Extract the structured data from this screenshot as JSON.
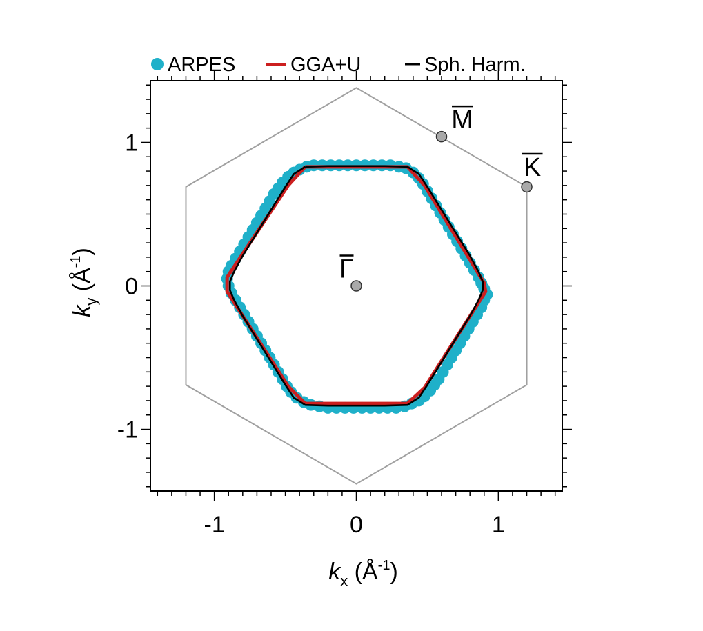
{
  "chart_data": {
    "type": "scatter",
    "xlabel": {
      "symbol": "k",
      "subscript": "x",
      "unit": "(Å",
      "unit_exp": "-1",
      "unit_close": ")"
    },
    "ylabel": {
      "symbol": "k",
      "subscript": "y",
      "unit": "(Å",
      "unit_exp": "-1",
      "unit_close": ")"
    },
    "xlim": [
      -1.45,
      1.45
    ],
    "ylim": [
      -1.43,
      1.43
    ],
    "x_ticks": [
      -1,
      0,
      1
    ],
    "y_ticks": [
      -1,
      0,
      1
    ],
    "x_tick_labels": [
      "-1",
      "0",
      "1"
    ],
    "y_tick_labels": [
      "-1",
      "0",
      "1"
    ],
    "minor_tick_step": 0.1,
    "grid": false,
    "legend": {
      "placement": "top",
      "entries": [
        {
          "label": "ARPES",
          "color": "#1fb0c9",
          "marker": "circle"
        },
        {
          "label": "GGA+U",
          "color": "#cc1f1f",
          "marker": "line"
        },
        {
          "label": "Sph. Harm.",
          "color": "#000000",
          "marker": "line"
        }
      ]
    },
    "brillouin_zone": {
      "color": "#a0a0a0",
      "vertices": [
        [
          0,
          1.38
        ],
        [
          1.2,
          0.69
        ],
        [
          1.2,
          -0.69
        ],
        [
          0,
          -1.38
        ],
        [
          -1.2,
          -0.69
        ],
        [
          -1.2,
          0.69
        ]
      ]
    },
    "high_symmetry_points": [
      {
        "label": "Γ",
        "x": 0.0,
        "y": 0.0
      },
      {
        "label": "M",
        "x": 0.6,
        "y": 1.04
      },
      {
        "label": "K",
        "x": 1.2,
        "y": 0.69
      }
    ],
    "series": [
      {
        "name": "ARPES",
        "color": "#1fb0c9",
        "kind": "points",
        "x": [
          0.0,
          0.06,
          0.12,
          0.18,
          0.24,
          0.3,
          0.35,
          0.4,
          0.44,
          0.47,
          0.5,
          0.53,
          0.56,
          0.59,
          0.62,
          0.65,
          0.68,
          0.71,
          0.74,
          0.77,
          0.8,
          0.83,
          0.86,
          0.88,
          0.9,
          0.92,
          0.9,
          0.88,
          0.85,
          0.82,
          0.79,
          0.76,
          0.73,
          0.7,
          0.67,
          0.64,
          0.61,
          0.58,
          0.55,
          0.52,
          0.48,
          0.44,
          0.39,
          0.34,
          0.28,
          0.22,
          0.16,
          0.1,
          0.04,
          -0.02,
          -0.08,
          -0.14,
          -0.2,
          -0.26,
          -0.32,
          -0.37,
          -0.42,
          -0.46,
          -0.49,
          -0.52,
          -0.55,
          -0.58,
          -0.61,
          -0.64,
          -0.67,
          -0.7,
          -0.73,
          -0.76,
          -0.79,
          -0.82,
          -0.85,
          -0.88,
          -0.9,
          -0.91,
          -0.9,
          -0.88,
          -0.85,
          -0.82,
          -0.79,
          -0.76,
          -0.73,
          -0.7,
          -0.67,
          -0.64,
          -0.61,
          -0.58,
          -0.55,
          -0.52,
          -0.48,
          -0.44,
          -0.4,
          -0.35,
          -0.3,
          -0.24,
          -0.18,
          -0.12,
          -0.06
        ],
        "y": [
          0.84,
          0.84,
          0.84,
          0.84,
          0.84,
          0.83,
          0.82,
          0.79,
          0.75,
          0.71,
          0.66,
          0.61,
          0.56,
          0.51,
          0.46,
          0.41,
          0.36,
          0.31,
          0.26,
          0.21,
          0.16,
          0.11,
          0.06,
          0.02,
          -0.02,
          -0.06,
          -0.1,
          -0.15,
          -0.2,
          -0.25,
          -0.3,
          -0.35,
          -0.4,
          -0.45,
          -0.5,
          -0.55,
          -0.6,
          -0.65,
          -0.69,
          -0.73,
          -0.77,
          -0.8,
          -0.82,
          -0.84,
          -0.85,
          -0.85,
          -0.85,
          -0.85,
          -0.85,
          -0.85,
          -0.85,
          -0.85,
          -0.85,
          -0.84,
          -0.83,
          -0.81,
          -0.78,
          -0.74,
          -0.7,
          -0.65,
          -0.6,
          -0.55,
          -0.5,
          -0.45,
          -0.4,
          -0.35,
          -0.3,
          -0.25,
          -0.2,
          -0.15,
          -0.1,
          -0.05,
          0.0,
          0.05,
          0.1,
          0.14,
          0.19,
          0.24,
          0.29,
          0.34,
          0.39,
          0.44,
          0.49,
          0.54,
          0.59,
          0.64,
          0.68,
          0.72,
          0.76,
          0.79,
          0.81,
          0.83,
          0.84,
          0.84,
          0.84,
          0.84,
          0.84
        ]
      },
      {
        "name": "GGA+U",
        "color": "#cc1f1f",
        "kind": "line",
        "x": [
          -0.36,
          0.36,
          0.48,
          0.9,
          0.91,
          0.48,
          0.36,
          -0.36,
          -0.48,
          -0.91,
          -0.91,
          -0.48,
          -0.36
        ],
        "y": [
          0.83,
          0.83,
          0.7,
          0.02,
          -0.04,
          -0.71,
          -0.82,
          -0.82,
          -0.7,
          -0.04,
          0.06,
          0.7,
          0.83
        ]
      },
      {
        "name": "Sph. Harm.",
        "color": "#000000",
        "kind": "line",
        "x": [
          -0.36,
          -0.2,
          0.0,
          0.2,
          0.36,
          0.44,
          0.5,
          0.6,
          0.7,
          0.8,
          0.86,
          0.89,
          0.89,
          0.86,
          0.8,
          0.7,
          0.6,
          0.5,
          0.44,
          0.36,
          0.2,
          0.0,
          -0.2,
          -0.36,
          -0.44,
          -0.5,
          -0.6,
          -0.7,
          -0.8,
          -0.86,
          -0.89,
          -0.89,
          -0.86,
          -0.8,
          -0.7,
          -0.6,
          -0.5,
          -0.44,
          -0.36
        ],
        "y": [
          0.83,
          0.835,
          0.835,
          0.835,
          0.83,
          0.78,
          0.69,
          0.53,
          0.37,
          0.21,
          0.1,
          0.03,
          -0.03,
          -0.1,
          -0.21,
          -0.37,
          -0.53,
          -0.69,
          -0.78,
          -0.83,
          -0.835,
          -0.835,
          -0.835,
          -0.83,
          -0.78,
          -0.69,
          -0.53,
          -0.37,
          -0.21,
          -0.1,
          -0.03,
          0.03,
          0.1,
          0.21,
          0.37,
          0.53,
          0.69,
          0.78,
          0.83
        ]
      }
    ]
  }
}
